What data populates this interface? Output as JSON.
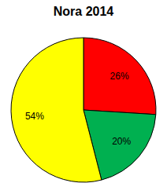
{
  "chart_data": {
    "type": "pie",
    "title": "Nora 2014",
    "values": [
      26,
      20,
      54
    ],
    "value_labels": [
      "26%",
      "20%",
      "54%"
    ],
    "colors": [
      "#ff0000",
      "#00b050",
      "#ffff00"
    ],
    "data_labels": true
  }
}
